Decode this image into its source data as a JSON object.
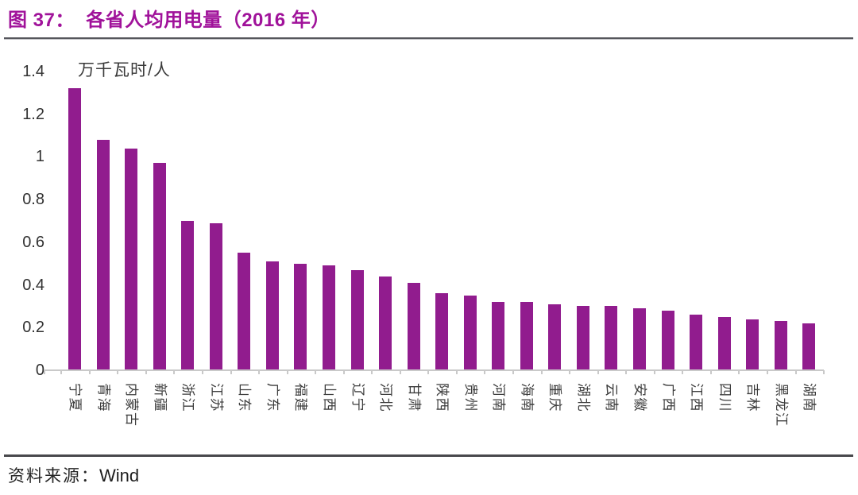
{
  "figure": {
    "title": "图 37：  各省人均用电量（2016 年）",
    "source_label": "资料来源：",
    "source_value": "Wind"
  },
  "chart_data": {
    "type": "bar",
    "title": "各省人均用电量（2016 年）",
    "unit_label": "万千瓦时/人",
    "categories": [
      "宁夏",
      "青海",
      "内蒙古",
      "新疆",
      "浙江",
      "江苏",
      "山东",
      "广东",
      "福建",
      "山西",
      "辽宁",
      "河北",
      "甘肃",
      "陕西",
      "贵州",
      "河南",
      "海南",
      "重庆",
      "湖北",
      "云南",
      "安徽",
      "广西",
      "江西",
      "四川",
      "吉林",
      "黑龙江",
      "湖南"
    ],
    "values": [
      1.32,
      1.08,
      1.04,
      0.97,
      0.7,
      0.69,
      0.55,
      0.51,
      0.5,
      0.49,
      0.47,
      0.44,
      0.41,
      0.36,
      0.35,
      0.32,
      0.32,
      0.31,
      0.3,
      0.3,
      0.29,
      0.28,
      0.26,
      0.25,
      0.24,
      0.23,
      0.22
    ],
    "xlabel": "",
    "ylabel": "万千瓦时/人",
    "ylim": [
      0,
      1.4
    ],
    "ytick_values": [
      0,
      0.2,
      0.4,
      0.6,
      0.8,
      1,
      1.2,
      1.4
    ],
    "ytick_labels": [
      "0",
      "0.2",
      "0.4",
      "0.6",
      "0.8",
      "1",
      "1.2",
      "1.4"
    ],
    "grid": "off",
    "legend": "none",
    "bar_color": "#911C8E",
    "title_color": "#A0129A"
  }
}
